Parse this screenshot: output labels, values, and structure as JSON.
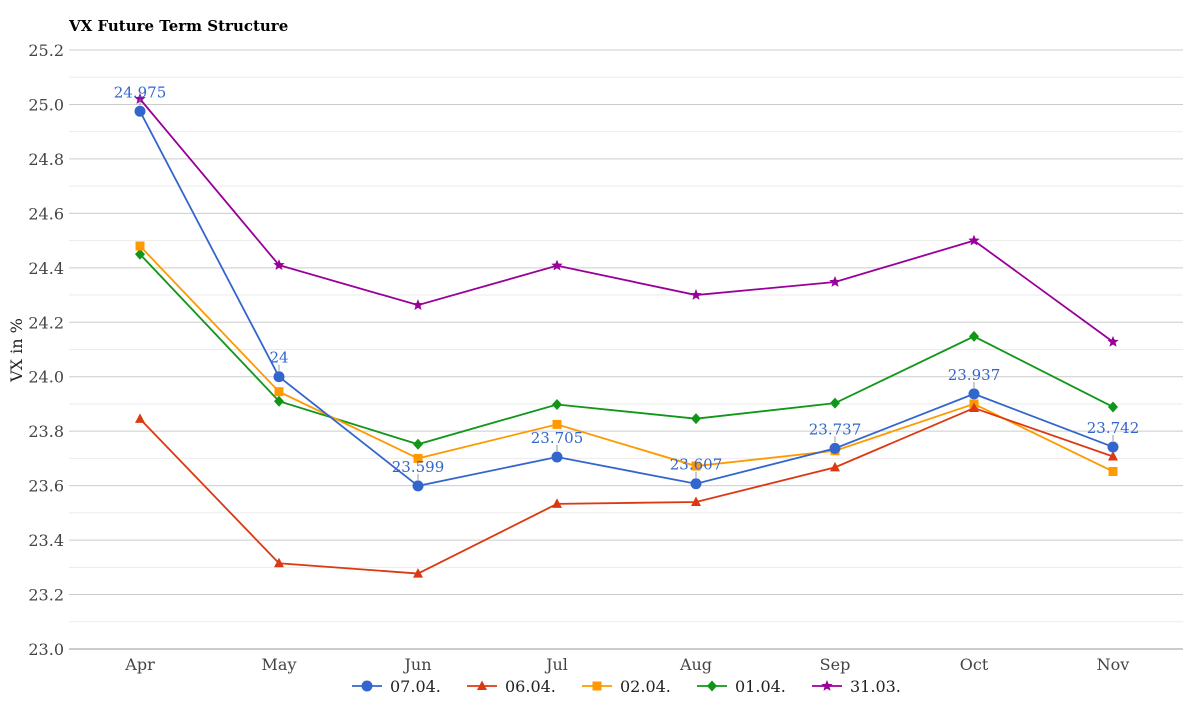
{
  "chart_data": {
    "type": "line",
    "title": "VX Future Term Structure",
    "xlabel": "",
    "ylabel": "VX in %",
    "categories": [
      "Apr",
      "May",
      "Jun",
      "Jul",
      "Aug",
      "Sep",
      "Oct",
      "Nov"
    ],
    "ylim": [
      23.0,
      25.2
    ],
    "yticks": [
      "23.0",
      "23.2",
      "23.4",
      "23.6",
      "23.8",
      "24.0",
      "24.2",
      "24.4",
      "24.6",
      "24.8",
      "25.0",
      "25.2"
    ],
    "grid": true,
    "legend_position": "bottom",
    "series": [
      {
        "name": "07.04.",
        "color": "#3366cc",
        "marker": "circle",
        "values": [
          24.975,
          24.0,
          23.599,
          23.705,
          23.607,
          23.737,
          23.937,
          23.742
        ],
        "data_labels": [
          "24.975",
          "24",
          "23.599",
          "23.705",
          "23.607",
          "23.737",
          "23.937",
          "23.742"
        ]
      },
      {
        "name": "06.04.",
        "color": "#dc3912",
        "marker": "triangle",
        "values": [
          23.845,
          23.315,
          23.277,
          23.533,
          23.54,
          23.667,
          23.885,
          23.707
        ]
      },
      {
        "name": "02.04.",
        "color": "#ff9900",
        "marker": "square",
        "values": [
          24.48,
          23.945,
          23.7,
          23.825,
          23.672,
          23.728,
          23.9,
          23.652
        ]
      },
      {
        "name": "01.04.",
        "color": "#109618",
        "marker": "diamond",
        "values": [
          24.45,
          23.91,
          23.752,
          23.898,
          23.846,
          23.903,
          24.148,
          23.889
        ]
      },
      {
        "name": "31.03.",
        "color": "#990099",
        "marker": "star",
        "values": [
          25.02,
          24.41,
          24.263,
          24.408,
          24.3,
          24.348,
          24.5,
          24.128
        ]
      }
    ]
  }
}
